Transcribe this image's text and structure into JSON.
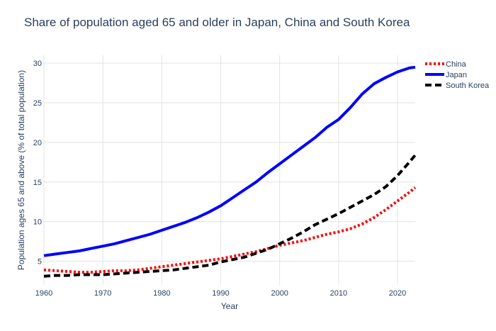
{
  "chart_data": {
    "type": "line",
    "title": "Share of population aged 65 and older in Japan, China and South Korea",
    "xlabel": "Year",
    "ylabel": "Population ages 65 and above (% of total population)",
    "xlim": [
      1960,
      2023
    ],
    "ylim": [
      2,
      31
    ],
    "xticks": [
      1960,
      1970,
      1980,
      1990,
      2000,
      2010,
      2020
    ],
    "yticks": [
      5,
      10,
      15,
      20,
      25,
      30
    ],
    "grid": true,
    "legend_position": "top-right",
    "x": [
      1960,
      1962,
      1964,
      1966,
      1968,
      1970,
      1972,
      1974,
      1976,
      1978,
      1980,
      1982,
      1984,
      1986,
      1988,
      1990,
      1992,
      1994,
      1996,
      1998,
      2000,
      2002,
      2004,
      2006,
      2008,
      2010,
      2012,
      2014,
      2016,
      2018,
      2020,
      2022,
      2023
    ],
    "series": [
      {
        "name": "China",
        "color": "#ff0000",
        "dash": "dot",
        "values": [
          3.9,
          3.8,
          3.7,
          3.6,
          3.6,
          3.7,
          3.8,
          3.8,
          3.9,
          4.1,
          4.3,
          4.5,
          4.7,
          4.9,
          5.1,
          5.3,
          5.6,
          5.9,
          6.2,
          6.6,
          7.0,
          7.3,
          7.6,
          8.0,
          8.4,
          8.7,
          9.1,
          9.7,
          10.5,
          11.5,
          12.6,
          13.7,
          14.3
        ]
      },
      {
        "name": "Japan",
        "color": "#0000ff",
        "dash": "solid",
        "values": [
          5.7,
          5.9,
          6.1,
          6.3,
          6.6,
          6.9,
          7.2,
          7.6,
          8.0,
          8.4,
          8.9,
          9.4,
          9.9,
          10.5,
          11.2,
          12.0,
          13.0,
          14.0,
          15.0,
          16.2,
          17.3,
          18.4,
          19.5,
          20.6,
          21.9,
          22.9,
          24.4,
          26.1,
          27.4,
          28.2,
          28.9,
          29.4,
          29.5
        ]
      },
      {
        "name": "South Korea",
        "color": "#000000",
        "dash": "dash",
        "values": [
          3.1,
          3.2,
          3.2,
          3.3,
          3.3,
          3.3,
          3.4,
          3.5,
          3.6,
          3.7,
          3.8,
          3.9,
          4.1,
          4.3,
          4.5,
          4.9,
          5.2,
          5.5,
          6.0,
          6.5,
          7.2,
          7.9,
          8.7,
          9.6,
          10.3,
          11.0,
          11.8,
          12.6,
          13.4,
          14.4,
          15.8,
          17.5,
          18.4
        ]
      }
    ]
  }
}
